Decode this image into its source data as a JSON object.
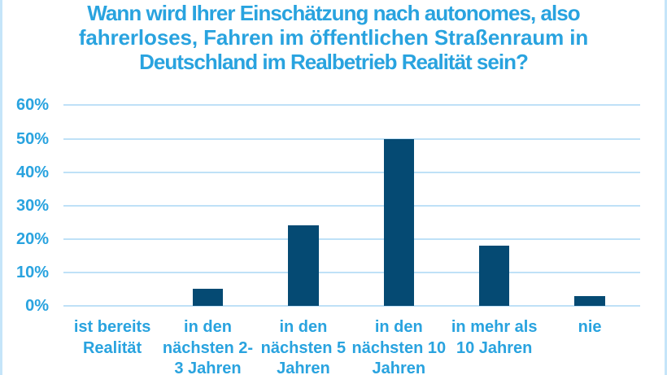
{
  "page": {
    "background": "#ffffff",
    "accent_text_color": "#29a3df",
    "bar_color": "#054a73",
    "gridline_color": "#bfe1f7",
    "side_rule_color": "#c5e5f9"
  },
  "header": {
    "title_lines": [
      "Wann wird Ihrer Einschätzung nach autonomes, also",
      "fahrerloses, Fahren im öffentlichen Straßenraum in",
      "Deutschland im Realbetrieb Realität sein?"
    ]
  },
  "chart_data": {
    "type": "bar",
    "title": "Wann wird Ihrer Einschätzung nach autonomes, also fahrerloses, Fahren im öffentlichen Straßenraum in Deutschland im Realbetrieb Realität sein?",
    "categories": [
      "ist bereits Realität",
      "in den nächsten 2-3 Jahren",
      "in den nächsten 5 Jahren",
      "in den nächsten 10 Jahren",
      "in mehr als 10 Jahren",
      "nie"
    ],
    "categories_display": [
      "ist bereits\nRealität",
      "in den\nnächsten 2-\n3 Jahren",
      "in den\nnächsten 5\nJahren",
      "in den\nnächsten 10\nJahren",
      "in mehr als\n10 Jahren",
      "nie"
    ],
    "values": [
      0,
      5,
      24,
      50,
      18,
      3
    ],
    "unit": "%",
    "yticks": [
      0,
      10,
      20,
      30,
      40,
      50,
      60
    ],
    "ytick_labels": [
      "0%",
      "10%",
      "20%",
      "30%",
      "40%",
      "50%",
      "60%"
    ],
    "ylim": [
      0,
      60
    ],
    "grid": "horizontal",
    "legend": "none",
    "xlabel": "",
    "ylabel": ""
  }
}
